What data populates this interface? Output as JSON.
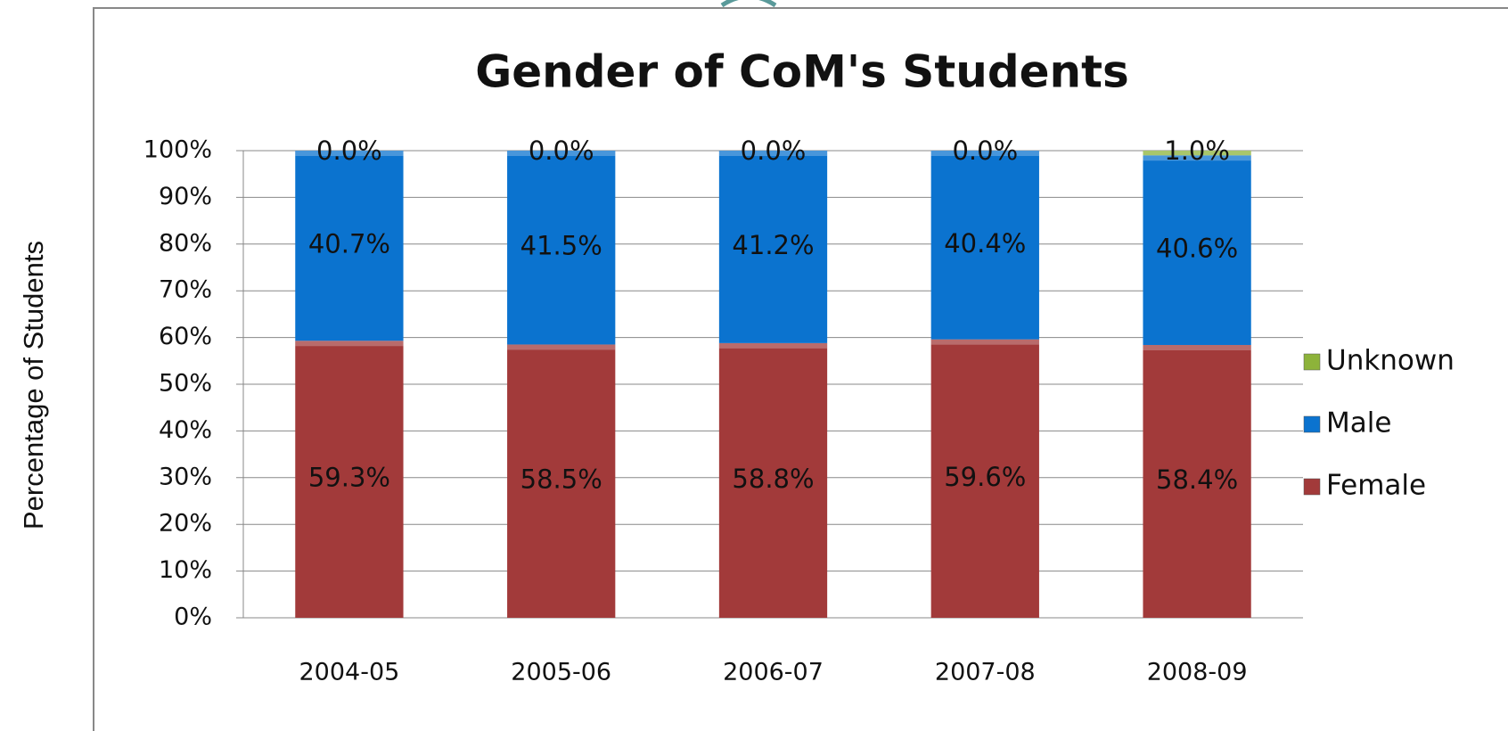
{
  "chart_data": {
    "type": "stacked_bar",
    "title": "Gender of CoM's Students",
    "y_label": "Percentage of Students",
    "categories": [
      "2004-05",
      "2005-06",
      "2006-07",
      "2007-08",
      "2008-09"
    ],
    "series": [
      {
        "name": "Female",
        "color": "#a23a3a",
        "values": [
          59.3,
          58.5,
          58.8,
          59.6,
          58.4
        ],
        "value_labels": [
          "59.3%",
          "58.5%",
          "58.8%",
          "59.6%",
          "58.4%"
        ]
      },
      {
        "name": "Male",
        "color": "#0b73cf",
        "values": [
          40.7,
          41.5,
          41.2,
          40.4,
          40.6
        ],
        "value_labels": [
          "40.7%",
          "41.5%",
          "41.2%",
          "40.4%",
          "40.6%"
        ]
      },
      {
        "name": "Unknown",
        "color": "#8db33a",
        "values": [
          0,
          0,
          0,
          0,
          1.0
        ],
        "value_labels": [
          "0.0%",
          "0.0%",
          "0.0%",
          "0.0%",
          "1.0%"
        ]
      }
    ],
    "ylim": [
      0,
      100
    ],
    "yticks": [
      {
        "value": 0,
        "label": "0%"
      },
      {
        "value": 10,
        "label": "10%"
      },
      {
        "value": 20,
        "label": "20%"
      },
      {
        "value": 30,
        "label": "30%"
      },
      {
        "value": 40,
        "label": "40%"
      },
      {
        "value": 50,
        "label": "50%"
      },
      {
        "value": 60,
        "label": "60%"
      },
      {
        "value": 70,
        "label": "70%"
      },
      {
        "value": 80,
        "label": "80%"
      },
      {
        "value": 90,
        "label": "90%"
      },
      {
        "value": 100,
        "label": "100%"
      }
    ],
    "grid": true,
    "legend": "right"
  }
}
